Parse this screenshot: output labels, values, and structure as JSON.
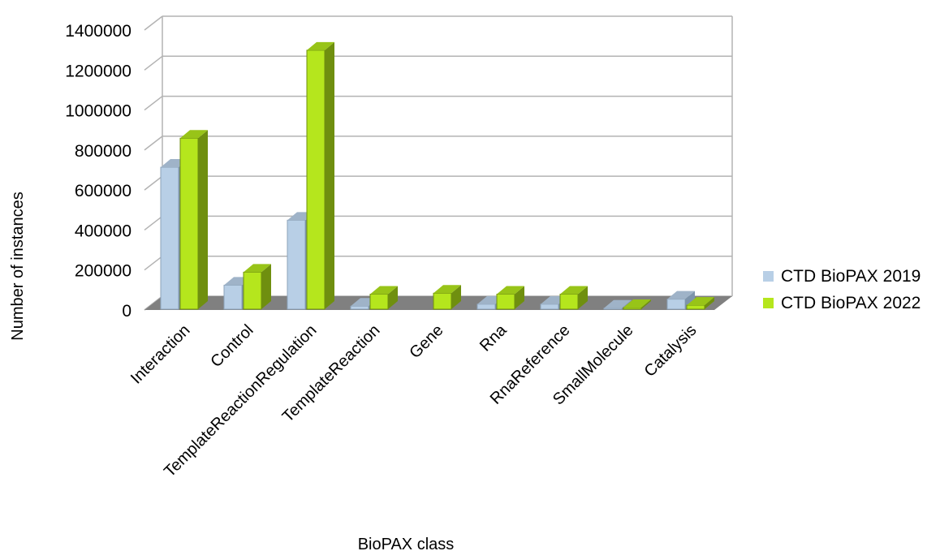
{
  "chart_data": {
    "type": "bar",
    "categories": [
      "Interaction",
      "Control",
      "TemplateReactionRegulation",
      "TemplateReaction",
      "Gene",
      "Rna",
      "RnaReference",
      "SmallMolecule",
      "Catalysis"
    ],
    "series": [
      {
        "name": "CTD BioPAX 2019",
        "color": "#b8cfe6",
        "values": [
          710000,
          120000,
          445000,
          15000,
          0,
          25000,
          25000,
          5000,
          50000
        ]
      },
      {
        "name": "CTD BioPAX 2022",
        "color": "#b5e61d",
        "values": [
          855000,
          185000,
          1295000,
          75000,
          80000,
          75000,
          75000,
          8000,
          20000
        ]
      }
    ],
    "xlabel": "BioPAX class",
    "ylabel": "Number of instances",
    "ylim": [
      0,
      1400000
    ],
    "yticks": [
      "0",
      "200000",
      "400000",
      "600000",
      "800000",
      "1000000",
      "1200000",
      "1400000"
    ],
    "grid": true,
    "legend_position": "right"
  }
}
